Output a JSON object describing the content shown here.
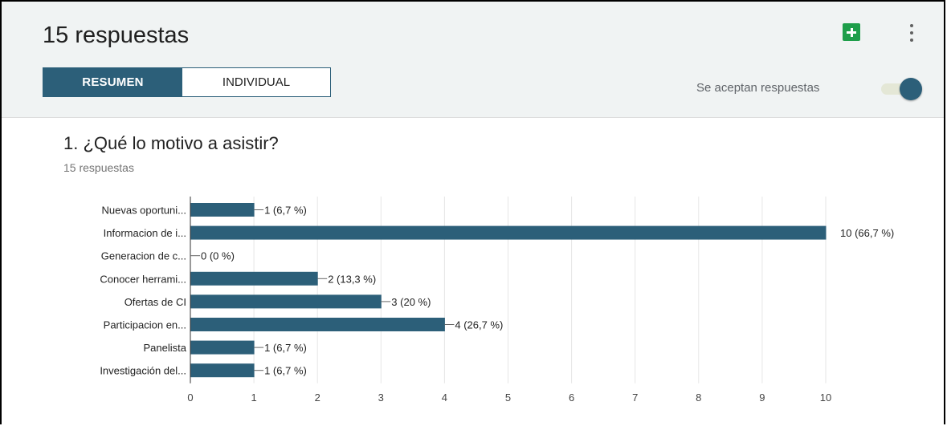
{
  "header": {
    "title": "15 respuestas",
    "tabs": [
      {
        "label": "RESUMEN",
        "active": true
      },
      {
        "label": "INDIVIDUAL",
        "active": false
      }
    ],
    "accepting_label": "Se aceptan respuestas",
    "accepting_responses": true
  },
  "question": {
    "title": "1. ¿Qué lo motivo a asistir?",
    "response_count": "15 respuestas"
  },
  "colors": {
    "bar": "#2c5f79",
    "accent": "#2c5f79",
    "sheets_icon": "#1e9e4a"
  },
  "icons": [
    "sheets-icon",
    "more-vert-icon"
  ],
  "chart_data": {
    "type": "bar",
    "orientation": "horizontal",
    "categories": [
      "Nuevas oportuni...",
      "Informacion de i...",
      "Generacion de c...",
      "Conocer herrami...",
      "Ofertas de CI",
      "Participacion en...",
      "Panelista",
      "Investigación del..."
    ],
    "values": [
      1,
      10,
      0,
      2,
      3,
      4,
      1,
      1
    ],
    "value_labels": [
      "1 (6,7 %)",
      "10 (66,7 %)",
      "0 (0 %)",
      "2 (13,3 %)",
      "3 (20 %)",
      "4 (26,7 %)",
      "1 (6,7 %)",
      "1 (6,7 %)"
    ],
    "xlim": [
      0,
      10
    ],
    "x_ticks": [
      "0",
      "1",
      "2",
      "3",
      "4",
      "5",
      "6",
      "7",
      "8",
      "9",
      "10"
    ],
    "grid": true
  }
}
